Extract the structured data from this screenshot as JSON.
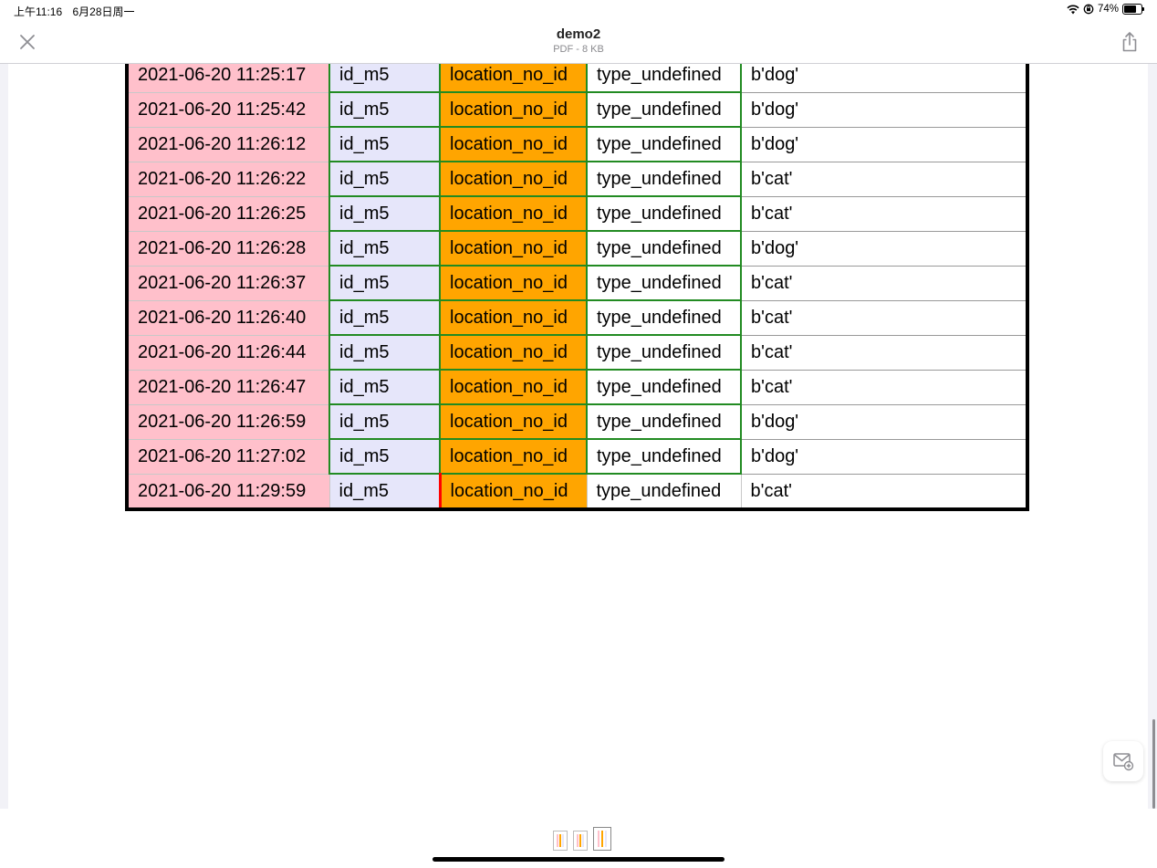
{
  "status": {
    "time": "上午11:16",
    "date": "6月28日周一",
    "battery": "74%",
    "battery_level": 0.74
  },
  "header": {
    "title": "demo2",
    "subtitle": "PDF - 8 KB"
  },
  "table": {
    "rows": [
      [
        "2021-06-20 11:25:17",
        "id_m5",
        "location_no_id",
        "type_undefined",
        "b'dog'"
      ],
      [
        "2021-06-20 11:25:42",
        "id_m5",
        "location_no_id",
        "type_undefined",
        "b'dog'"
      ],
      [
        "2021-06-20 11:26:12",
        "id_m5",
        "location_no_id",
        "type_undefined",
        "b'dog'"
      ],
      [
        "2021-06-20 11:26:22",
        "id_m5",
        "location_no_id",
        "type_undefined",
        "b'cat'"
      ],
      [
        "2021-06-20 11:26:25",
        "id_m5",
        "location_no_id",
        "type_undefined",
        "b'cat'"
      ],
      [
        "2021-06-20 11:26:28",
        "id_m5",
        "location_no_id",
        "type_undefined",
        "b'dog'"
      ],
      [
        "2021-06-20 11:26:37",
        "id_m5",
        "location_no_id",
        "type_undefined",
        "b'cat'"
      ],
      [
        "2021-06-20 11:26:40",
        "id_m5",
        "location_no_id",
        "type_undefined",
        "b'cat'"
      ],
      [
        "2021-06-20 11:26:44",
        "id_m5",
        "location_no_id",
        "type_undefined",
        "b'cat'"
      ],
      [
        "2021-06-20 11:26:47",
        "id_m5",
        "location_no_id",
        "type_undefined",
        "b'cat'"
      ],
      [
        "2021-06-20 11:26:59",
        "id_m5",
        "location_no_id",
        "type_undefined",
        "b'dog'"
      ],
      [
        "2021-06-20 11:27:02",
        "id_m5",
        "location_no_id",
        "type_undefined",
        "b'dog'"
      ],
      [
        "2021-06-20 11:29:59",
        "id_m5",
        "location_no_id",
        "type_undefined",
        "b'cat'"
      ]
    ]
  },
  "icons": {
    "close": "close-icon",
    "share": "share-icon",
    "mail": "mail-add-icon",
    "wifi": "wifi-icon",
    "orientation_lock": "orientation-lock-icon",
    "battery": "battery-icon"
  },
  "colors": {
    "time_col": "#ffc0cb",
    "id_col": "#e6e6fa",
    "location_col": "#ffa500",
    "grid_green": "#228b22"
  }
}
